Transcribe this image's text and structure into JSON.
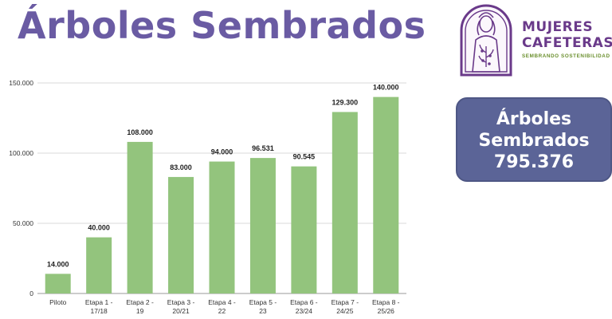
{
  "header": {
    "title": "Árboles Sembrados"
  },
  "brand": {
    "name_line1": "MUJERES",
    "name_line2": "CAFETERAS",
    "tagline": "SEMBRANDO SOSTENIBILIDAD",
    "colors": {
      "purple": "#6a3a8a",
      "green": "#6a8f2d"
    },
    "logo_icon": "woman-coffee-plant-icon"
  },
  "summary": {
    "label_line1": "Árboles",
    "label_line2": "Sembrados",
    "total": "795.376",
    "color": "#5b6497"
  },
  "chart_data": {
    "type": "bar",
    "title": "",
    "xlabel": "",
    "ylabel": "",
    "categories": [
      "Piloto",
      "Etapa 1 - 17/18",
      "Etapa 2 - 19",
      "Etapa 3 - 20/21",
      "Etapa 4 - 22",
      "Etapa 5 - 23",
      "Etapa 6 - 23/24",
      "Etapa 7 - 24/25",
      "Etapa 8 - 25/26"
    ],
    "values": [
      14000,
      40000,
      108000,
      83000,
      94000,
      96531,
      90545,
      129300,
      140000
    ],
    "value_labels": [
      "14.000",
      "40.000",
      "108.000",
      "83.000",
      "94.000",
      "96.531",
      "90.545",
      "129.300",
      "140.000"
    ],
    "yticks": [
      0,
      50000,
      100000,
      150000
    ],
    "ytick_labels": [
      "0",
      "50.000",
      "100.000",
      "150.000"
    ],
    "ylim": [
      0,
      150000
    ],
    "bar_color": "#93c47d",
    "grid": true,
    "legend": "none"
  }
}
